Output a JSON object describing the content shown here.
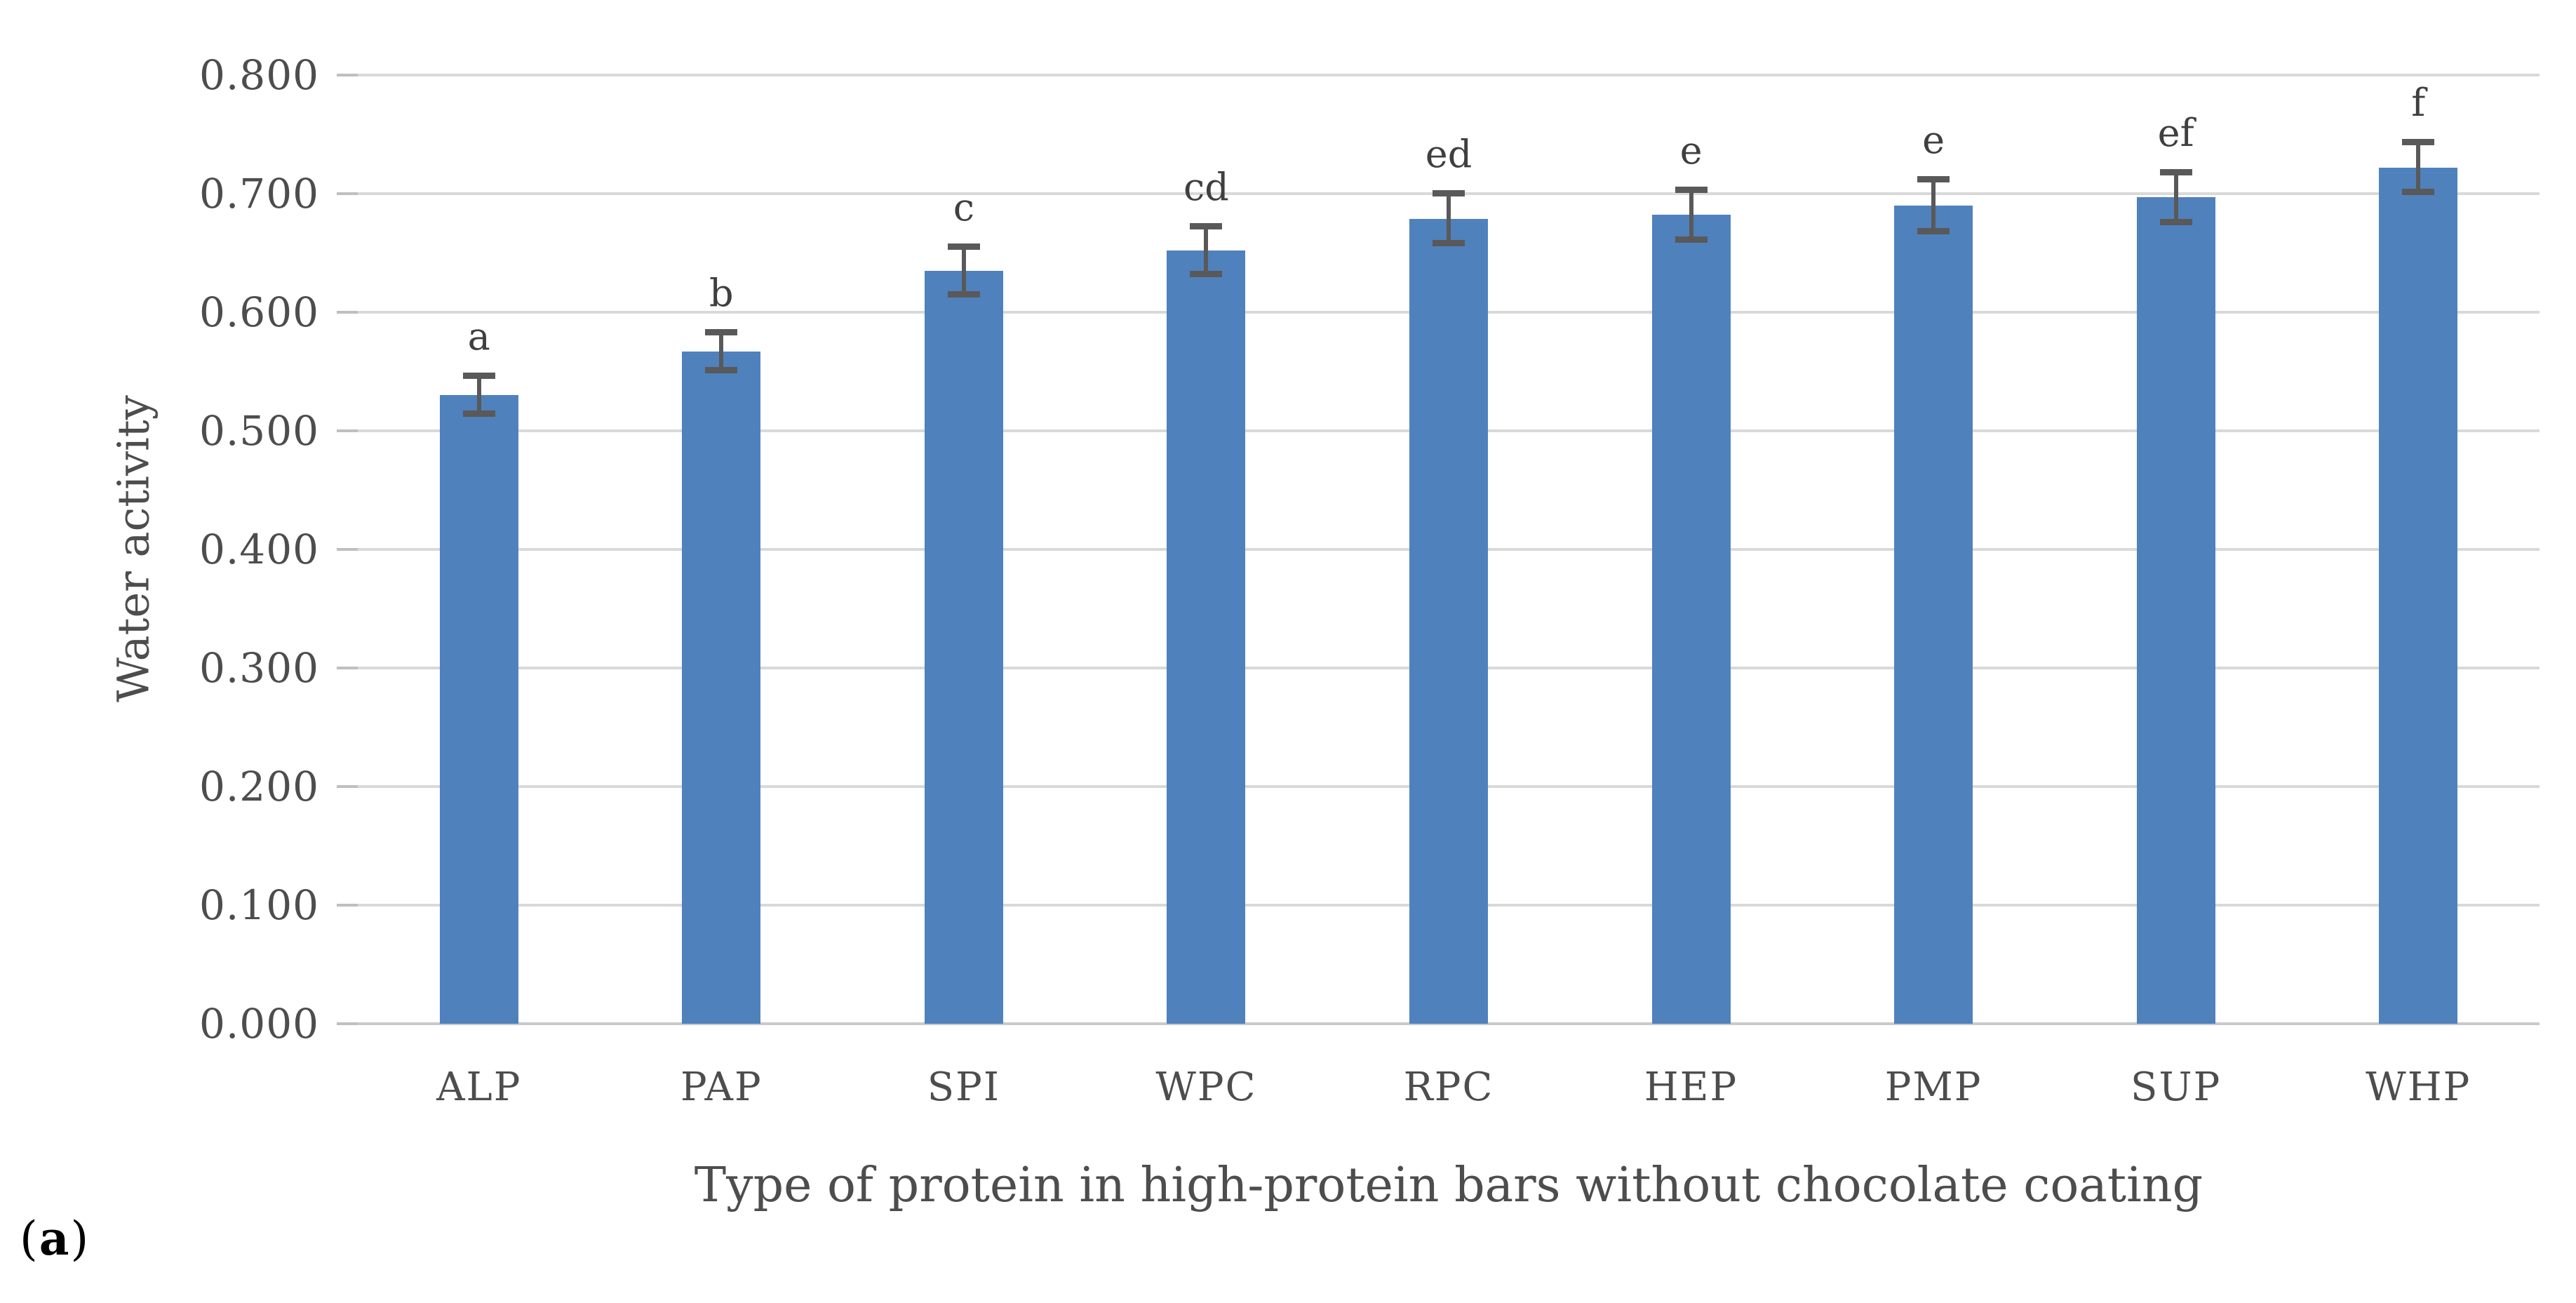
{
  "figure": {
    "panel_label": {
      "open": "(",
      "letter": "a",
      "close": ")"
    }
  },
  "chart_data": {
    "type": "bar",
    "title": "",
    "categories": [
      "ALP",
      "PAP",
      "SPI",
      "WPC",
      "RPC",
      "HEP",
      "PMP",
      "SUP",
      "WHP"
    ],
    "values": [
      0.53,
      0.567,
      0.635,
      0.652,
      0.679,
      0.682,
      0.69,
      0.697,
      0.722
    ],
    "errors": [
      0.016,
      0.016,
      0.02,
      0.02,
      0.021,
      0.021,
      0.022,
      0.021,
      0.021
    ],
    "significance_letters": [
      "a",
      "b",
      "c",
      "cd",
      "ed",
      "e",
      "e",
      "ef",
      "f"
    ],
    "xlabel": "Type of protein in high-protein bars without chocolate coating",
    "ylabel": "Water activity",
    "ylim": [
      0.0,
      0.8
    ],
    "y_tick_step": 0.1,
    "y_tick_labels": [
      "0.000",
      "0.100",
      "0.200",
      "0.300",
      "0.400",
      "0.500",
      "0.600",
      "0.700",
      "0.800"
    ],
    "grid": true,
    "legend": false,
    "colors": {
      "bar": "#4F81BD",
      "error_bar": "#595959",
      "gridline": "#D9D9D9",
      "baseline": "#C9C9C9",
      "tick_stub": "#BFBFBF",
      "axis_text": "#4D4D4D",
      "letter_text": "#3F3F3F"
    }
  }
}
